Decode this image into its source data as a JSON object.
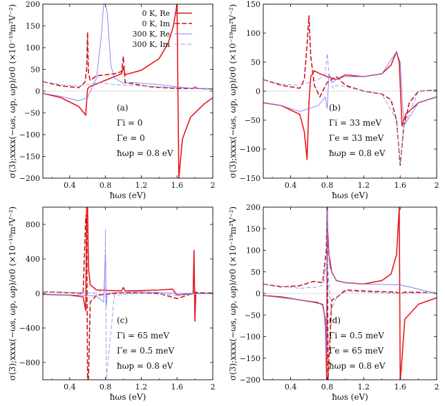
{
  "chart_data": [
    {
      "type": "line",
      "panel_label": "(a)",
      "annotations": [
        "Γi = 0",
        "Γe = 0",
        "ħωp = 0.8 eV"
      ],
      "xlabel": "ħωs (eV)",
      "ylabel": "σ(3);xxxx(−ωs, ωp, ωp)/σ0 (×10⁻¹⁹m²V⁻²)",
      "xlim": [
        0.1,
        2.0
      ],
      "ylim": [
        -200,
        200
      ],
      "xticks": [
        0.4,
        0.8,
        1.2,
        1.6,
        2.0
      ],
      "xtick_labels": [
        "0.4",
        "0.8",
        "1.2",
        "1.6",
        "2"
      ],
      "yticks": [
        -200,
        -150,
        -100,
        -50,
        0,
        50,
        100,
        150,
        200
      ],
      "legend": {
        "position": "top-right",
        "entries": [
          "0 K, Re",
          "0 K, Im",
          "300 K, Re",
          "300 K, Im"
        ]
      },
      "series": [
        {
          "name": "0 K, Re",
          "x": [
            0.1,
            0.3,
            0.5,
            0.58,
            0.6,
            0.62,
            0.8,
            0.98,
            1.0,
            1.02,
            1.2,
            1.4,
            1.5,
            1.56,
            1.6,
            1.62,
            1.66,
            1.75,
            1.9,
            2.0
          ],
          "y": [
            -5,
            -15,
            -35,
            -55,
            5,
            10,
            25,
            40,
            55,
            38,
            48,
            75,
            110,
            150,
            200,
            -200,
            -110,
            -60,
            -30,
            -15
          ]
        },
        {
          "name": "0 K, Im",
          "x": [
            0.1,
            0.3,
            0.5,
            0.57,
            0.59,
            0.6,
            0.61,
            0.63,
            0.7,
            0.9,
            0.98,
            1.0,
            1.02,
            1.3,
            1.6,
            1.78,
            1.8,
            1.82,
            2.0
          ],
          "y": [
            22,
            12,
            8,
            20,
            50,
            135,
            40,
            25,
            35,
            40,
            45,
            80,
            20,
            10,
            6,
            6,
            12,
            6,
            5
          ]
        },
        {
          "name": "300 K, Re",
          "x": [
            0.1,
            0.3,
            0.5,
            0.6,
            0.7,
            0.75,
            0.78,
            0.8,
            0.82,
            0.86,
            0.9,
            1.0,
            1.1,
            1.4,
            1.6,
            1.8,
            2.0
          ],
          "y": [
            -5,
            -12,
            -22,
            -15,
            30,
            120,
            200,
            200,
            180,
            60,
            30,
            18,
            20,
            15,
            10,
            6,
            4
          ]
        },
        {
          "name": "300 K, Im",
          "x": [
            0.1,
            0.3,
            0.5,
            0.6,
            0.7,
            0.8,
            0.9,
            1.0,
            1.2,
            1.6,
            2.0
          ],
          "y": [
            22,
            15,
            12,
            15,
            20,
            18,
            15,
            14,
            12,
            8,
            6
          ]
        }
      ]
    },
    {
      "type": "line",
      "panel_label": "(b)",
      "annotations": [
        "Γi = 33 meV",
        "Γe = 33 meV",
        "ħωp = 0.8 eV"
      ],
      "xlabel": "ħωs (eV)",
      "ylabel": "σ(3);xxxx(−ωs, ωp, ωp)/σ0 (×10⁻¹⁹m²V⁻²)",
      "xlim": [
        0.1,
        2.0
      ],
      "ylim": [
        -150,
        150
      ],
      "xticks": [
        0.4,
        0.8,
        1.2,
        1.6,
        2.0
      ],
      "xtick_labels": [
        "0.4",
        "0.8",
        "1.2",
        "1.6",
        "2"
      ],
      "yticks": [
        -150,
        -100,
        -50,
        0,
        50,
        100,
        150
      ],
      "series": [
        {
          "name": "0 K, Re",
          "x": [
            0.1,
            0.3,
            0.5,
            0.55,
            0.58,
            0.6,
            0.62,
            0.66,
            0.72,
            0.8,
            0.9,
            1.0,
            1.2,
            1.4,
            1.5,
            1.56,
            1.59,
            1.62,
            1.66,
            1.8,
            2.0
          ],
          "y": [
            -20,
            -25,
            -40,
            -70,
            -118,
            -20,
            25,
            35,
            30,
            25,
            20,
            28,
            25,
            30,
            45,
            68,
            50,
            -60,
            -40,
            -20,
            -10
          ]
        },
        {
          "name": "0 K, Im",
          "x": [
            0.1,
            0.3,
            0.5,
            0.55,
            0.58,
            0.6,
            0.62,
            0.66,
            0.72,
            0.8,
            0.9,
            1.0,
            1.2,
            1.4,
            1.5,
            1.56,
            1.6,
            1.64,
            1.7,
            1.8,
            2.0
          ],
          "y": [
            20,
            10,
            5,
            20,
            80,
            130,
            60,
            10,
            -10,
            15,
            25,
            10,
            0,
            -5,
            -15,
            -50,
            -128,
            -60,
            -20,
            0,
            2
          ]
        },
        {
          "name": "300 K, Re",
          "x": [
            0.1,
            0.3,
            0.5,
            0.6,
            0.7,
            0.78,
            0.8,
            0.82,
            0.86,
            0.9,
            1.0,
            1.2,
            1.4,
            1.56,
            1.6,
            1.64,
            1.8,
            2.0
          ],
          "y": [
            -20,
            -25,
            -35,
            -30,
            -25,
            -10,
            -30,
            30,
            15,
            20,
            25,
            25,
            30,
            68,
            50,
            -60,
            -20,
            -10
          ]
        },
        {
          "name": "300 K, Im",
          "x": [
            0.1,
            0.3,
            0.5,
            0.6,
            0.7,
            0.78,
            0.8,
            0.82,
            0.86,
            0.9,
            1.0,
            1.2,
            1.4,
            1.56,
            1.6,
            1.64,
            1.8,
            2.0
          ],
          "y": [
            20,
            12,
            10,
            15,
            20,
            30,
            65,
            30,
            5,
            10,
            8,
            0,
            -5,
            -50,
            -125,
            -60,
            0,
            2
          ]
        }
      ]
    },
    {
      "type": "line",
      "panel_label": "(c)",
      "annotations": [
        "Γi = 65 meV",
        "Γe = 0.5 meV",
        "ħωp = 0.8 eV"
      ],
      "xlabel": "ħωs (eV)",
      "ylabel": "σ(3);xxxx(−ωs, ωp, ωp)/σ0 (×10⁻¹⁹m²V⁻²)",
      "xlim": [
        0.1,
        2.0
      ],
      "ylim": [
        -1000,
        1000
      ],
      "xticks": [
        0.4,
        0.8,
        1.2,
        1.6,
        2.0
      ],
      "xtick_labels": [
        "0.4",
        "0.8",
        "1.2",
        "1.6",
        "2"
      ],
      "yticks": [
        -800,
        -400,
        0,
        400,
        800
      ],
      "series": [
        {
          "name": "0 K, Re",
          "x": [
            0.1,
            0.4,
            0.55,
            0.58,
            0.59,
            0.6,
            0.61,
            0.63,
            0.7,
            0.98,
            1.0,
            1.02,
            1.4,
            1.55,
            1.6,
            1.78,
            1.79,
            1.8,
            1.81,
            1.82,
            2.0
          ],
          "y": [
            -10,
            -20,
            -40,
            -200,
            1000,
            1000,
            300,
            100,
            40,
            30,
            70,
            30,
            40,
            50,
            -20,
            0,
            500,
            -320,
            20,
            0,
            0
          ]
        },
        {
          "name": "0 K, Im",
          "x": [
            0.1,
            0.4,
            0.55,
            0.58,
            0.59,
            0.6,
            0.61,
            0.63,
            0.7,
            1.0,
            1.4,
            1.6,
            1.8,
            2.0
          ],
          "y": [
            20,
            10,
            0,
            900,
            900,
            -1000,
            -1000,
            -100,
            -20,
            10,
            0,
            -60,
            10,
            5
          ]
        },
        {
          "name": "300 K, Re",
          "x": [
            0.1,
            0.5,
            0.7,
            0.78,
            0.79,
            0.8,
            0.81,
            0.82,
            0.9,
            1.2,
            1.6,
            2.0
          ],
          "y": [
            -10,
            -20,
            -30,
            -100,
            200,
            450,
            -150,
            0,
            10,
            20,
            0,
            0
          ]
        },
        {
          "name": "300 K, Im",
          "x": [
            0.1,
            0.5,
            0.7,
            0.79,
            0.8,
            0.81,
            0.9,
            1.2,
            1.6,
            2.0
          ],
          "y": [
            20,
            10,
            5,
            50,
            740,
            -1000,
            -20,
            5,
            -20,
            5
          ]
        }
      ]
    },
    {
      "type": "line",
      "panel_label": "(d)",
      "annotations": [
        "Γi = 0.5 meV",
        "Γe = 65 meV",
        "ħωp = 0.8 eV"
      ],
      "xlabel": "ħωs (eV)",
      "ylabel": "σ(3);xxxx(−ωs, ωp, ωp)/σ0 (×10⁻¹⁹m²V⁻²)",
      "xlim": [
        0.1,
        2.0
      ],
      "ylim": [
        -200,
        200
      ],
      "xticks": [
        0.4,
        0.8,
        1.2,
        1.6,
        2.0
      ],
      "xtick_labels": [
        "0.4",
        "0.8",
        "1.2",
        "1.6",
        "2"
      ],
      "yticks": [
        -200,
        -150,
        -100,
        -50,
        0,
        50,
        100,
        150,
        200
      ],
      "series": [
        {
          "name": "0 K, Re",
          "x": [
            0.1,
            0.3,
            0.5,
            0.65,
            0.75,
            0.78,
            0.795,
            0.8,
            0.805,
            0.82,
            0.85,
            0.9,
            1.0,
            1.2,
            1.4,
            1.5,
            1.56,
            1.59,
            1.6,
            1.61,
            1.65,
            1.8,
            2.0
          ],
          "y": [
            -5,
            -8,
            -15,
            -20,
            -25,
            -60,
            -200,
            200,
            150,
            90,
            50,
            30,
            25,
            22,
            30,
            45,
            90,
            200,
            -200,
            -180,
            -60,
            -25,
            -10
          ]
        },
        {
          "name": "0 K, Im",
          "x": [
            0.1,
            0.3,
            0.5,
            0.65,
            0.75,
            0.79,
            0.8,
            0.81,
            0.85,
            0.9,
            1.0,
            1.3,
            1.55,
            1.6,
            1.65,
            2.0
          ],
          "y": [
            22,
            15,
            18,
            28,
            25,
            100,
            200,
            -200,
            -15,
            -10,
            8,
            5,
            3,
            0,
            3,
            2
          ]
        },
        {
          "name": "300 K, Re",
          "x": [
            0.1,
            0.5,
            0.7,
            0.76,
            0.78,
            0.79,
            0.8,
            0.81,
            0.83,
            0.9,
            1.0,
            1.2,
            1.6,
            2.0
          ],
          "y": [
            -5,
            -15,
            -20,
            -30,
            -80,
            -150,
            200,
            120,
            60,
            30,
            25,
            22,
            20,
            0
          ]
        },
        {
          "name": "300 K, Im",
          "x": [
            0.1,
            0.5,
            0.7,
            0.76,
            0.8,
            0.84,
            0.9,
            1.0,
            1.6,
            2.0
          ],
          "y": [
            22,
            12,
            15,
            20,
            80,
            -40,
            -10,
            5,
            0,
            2
          ]
        }
      ]
    }
  ],
  "series_colors": [
    "#e8171b",
    "#c8161c",
    "#7b7cf2",
    "#8f90ee"
  ],
  "envelope_color": "#7f0b3f"
}
